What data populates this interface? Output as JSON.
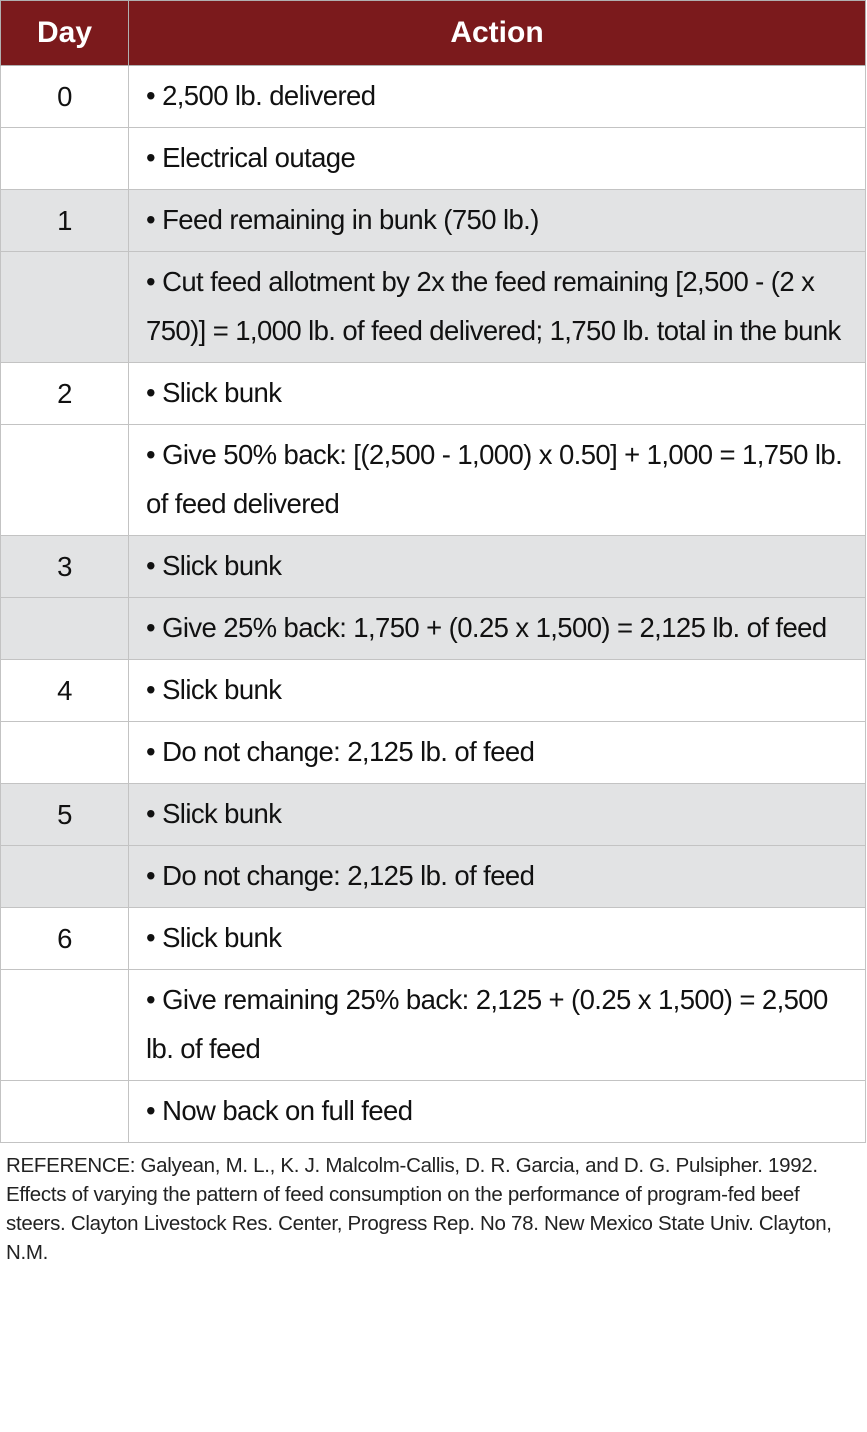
{
  "table": {
    "headers": {
      "day": "Day",
      "action": "Action"
    },
    "rows": [
      {
        "day": "0",
        "action": "• 2,500 lb. delivered",
        "shaded": false
      },
      {
        "day": "",
        "action": "• Electrical outage",
        "shaded": false
      },
      {
        "day": "1",
        "action": "• Feed remaining in bunk (750 lb.)",
        "shaded": true
      },
      {
        "day": "",
        "action": "• Cut feed allotment by 2x the feed remaining [2,500 - (2 x 750)] = 1,000 lb. of feed delivered; 1,750 lb. total in the bunk",
        "shaded": true
      },
      {
        "day": "2",
        "action": "• Slick bunk",
        "shaded": false
      },
      {
        "day": "",
        "action": "• Give 50% back: [(2,500 - 1,000) x 0.50] + 1,000 = 1,750 lb. of feed delivered",
        "shaded": false
      },
      {
        "day": "3",
        "action": "• Slick bunk",
        "shaded": true
      },
      {
        "day": "",
        "action": "• Give 25% back: 1,750 + (0.25 x 1,500) = 2,125 lb. of feed",
        "shaded": true
      },
      {
        "day": "4",
        "action": "• Slick bunk",
        "shaded": false
      },
      {
        "day": "",
        "action": "• Do not change: 2,125 lb. of feed",
        "shaded": false
      },
      {
        "day": "5",
        "action": "• Slick bunk",
        "shaded": true
      },
      {
        "day": "",
        "action": "• Do not change: 2,125 lb. of feed",
        "shaded": true
      },
      {
        "day": "6",
        "action": "• Slick bunk",
        "shaded": false
      },
      {
        "day": "",
        "action": "• Give remaining 25% back: 2,125 + (0.25 x 1,500) = 2,500 lb. of feed",
        "shaded": false
      },
      {
        "day": "",
        "action": "• Now back on full feed",
        "shaded": false
      }
    ]
  },
  "reference": "REFERENCE: Galyean, M. L., K. J. Malcolm-Callis, D. R. Garcia, and D. G. Pulsipher. 1992. Effects of varying the pattern of feed consumption on the performance of program-fed beef steers. Clayton Livestock Res. Center, Progress Rep. No 78. New Mexico State Univ. Clayton, N.M.",
  "colors": {
    "header": "#7b1a1c",
    "shade": "#e2e3e4"
  }
}
